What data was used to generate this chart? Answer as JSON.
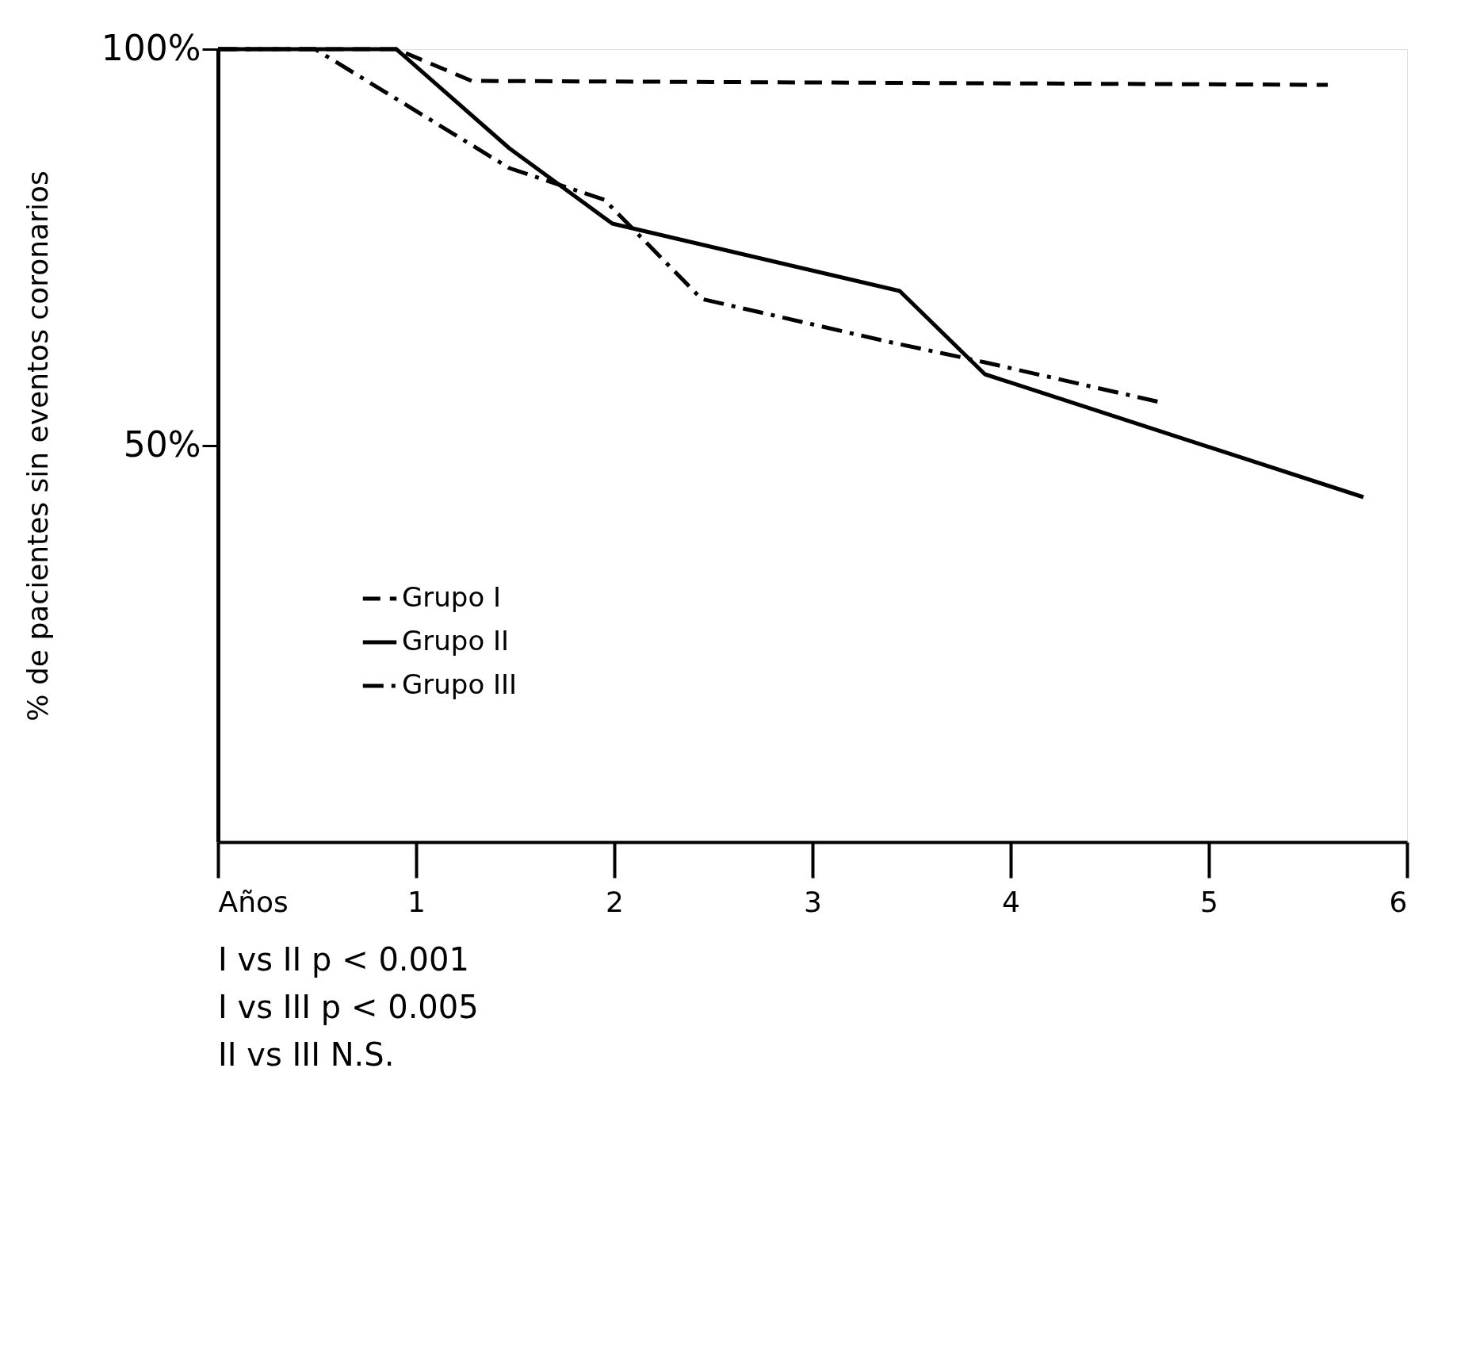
{
  "chart_data": {
    "type": "line",
    "ylabel": "% de pacientes sin eventos coronarios",
    "xlim": [
      0,
      6
    ],
    "ylim": [
      0,
      100
    ],
    "xticks": [
      {
        "value": 0,
        "label": "Años"
      },
      1,
      2,
      3,
      4,
      5,
      6
    ],
    "yticks": [
      {
        "value": 50,
        "label": "50%"
      },
      {
        "value": 100,
        "label": "100%"
      }
    ],
    "grid": false,
    "legend": "bottom left",
    "marker": "none",
    "series": [
      {
        "name": "Grupo I",
        "color": "#000000",
        "line_style": "dashed",
        "x": [
          0,
          0.9,
          1.28,
          5.6
        ],
        "values": [
          100,
          100,
          96,
          95.5
        ]
      },
      {
        "name": "Grupo II",
        "color": "#000000",
        "line_style": "solid",
        "x": [
          0,
          0.9,
          1.47,
          1.99,
          3.44,
          3.87,
          5.78
        ],
        "values": [
          100,
          100,
          87.5,
          78,
          69.5,
          59,
          43.5
        ]
      },
      {
        "name": "Grupo III",
        "color": "#000000",
        "line_style": "dashdot",
        "x": [
          0,
          0.49,
          1.47,
          1.95,
          2.44,
          3.4,
          3.87,
          4.75
        ],
        "values": [
          100,
          100,
          85,
          81,
          68.5,
          63,
          60.5,
          55.5
        ]
      }
    ],
    "annotations": [
      "I vs II p < 0.001",
      "I vs III p < 0.005",
      "II vs III  N.S."
    ]
  }
}
